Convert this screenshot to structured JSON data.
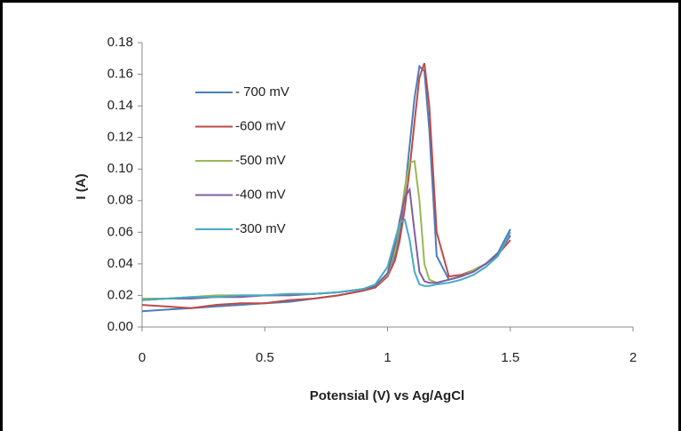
{
  "chart_data": {
    "type": "line",
    "x_label": "Potensial (V) vs Ag/AgCl",
    "y_label": "I (A)",
    "x": [
      0,
      0.1,
      0.2,
      0.3,
      0.4,
      0.5,
      0.6,
      0.7,
      0.8,
      0.9,
      0.95,
      1.0,
      1.03,
      1.05,
      1.07,
      1.09,
      1.11,
      1.13,
      1.15,
      1.17,
      1.2,
      1.25,
      1.3,
      1.35,
      1.4,
      1.45,
      1.5
    ],
    "series": [
      {
        "name": "- 700 mV",
        "color": "#4a7ebb",
        "values": [
          0.01,
          0.011,
          0.012,
          0.013,
          0.014,
          0.015,
          0.016,
          0.018,
          0.02,
          0.023,
          0.026,
          0.034,
          0.045,
          0.06,
          0.085,
          0.115,
          0.145,
          0.165,
          0.162,
          0.125,
          0.045,
          0.03,
          0.032,
          0.036,
          0.04,
          0.047,
          0.062
        ]
      },
      {
        "name": "-600 mV",
        "color": "#be4b48",
        "values": [
          0.014,
          0.013,
          0.012,
          0.014,
          0.015,
          0.015,
          0.017,
          0.018,
          0.02,
          0.023,
          0.025,
          0.032,
          0.042,
          0.055,
          0.075,
          0.1,
          0.13,
          0.158,
          0.167,
          0.14,
          0.06,
          0.032,
          0.033,
          0.036,
          0.04,
          0.046,
          0.055
        ]
      },
      {
        "name": "-500 mV",
        "color": "#98b954",
        "values": [
          0.018,
          0.018,
          0.019,
          0.02,
          0.02,
          0.02,
          0.021,
          0.021,
          0.022,
          0.024,
          0.026,
          0.033,
          0.048,
          0.065,
          0.088,
          0.104,
          0.105,
          0.08,
          0.04,
          0.03,
          0.028,
          0.03,
          0.032,
          0.036,
          0.04,
          0.046,
          0.058
        ]
      },
      {
        "name": "-400 mV",
        "color": "#7d60a0",
        "values": [
          0.017,
          0.018,
          0.018,
          0.019,
          0.019,
          0.02,
          0.02,
          0.021,
          0.022,
          0.024,
          0.026,
          0.034,
          0.052,
          0.068,
          0.082,
          0.087,
          0.06,
          0.035,
          0.029,
          0.028,
          0.028,
          0.03,
          0.032,
          0.035,
          0.04,
          0.046,
          0.058
        ]
      },
      {
        "name": "-300 mV",
        "color": "#46aac5",
        "values": [
          0.017,
          0.018,
          0.019,
          0.019,
          0.02,
          0.02,
          0.021,
          0.021,
          0.022,
          0.024,
          0.027,
          0.038,
          0.055,
          0.066,
          0.068,
          0.055,
          0.035,
          0.027,
          0.026,
          0.026,
          0.027,
          0.028,
          0.03,
          0.033,
          0.038,
          0.045,
          0.06
        ]
      }
    ],
    "xlim": [
      0,
      2
    ],
    "xticks": [
      0,
      0.5,
      1,
      1.5,
      2
    ],
    "ylim": [
      0,
      0.18
    ],
    "yticks": [
      {
        "value": 0,
        "label": "0.00"
      },
      {
        "value": 0.02,
        "label": "0.02"
      },
      {
        "value": 0.04,
        "label": "0.04"
      },
      {
        "value": 0.06,
        "label": "0.06"
      },
      {
        "value": 0.08,
        "label": "0.08"
      },
      {
        "value": 0.1,
        "label": "0.10"
      },
      {
        "value": 0.12,
        "label": "0.12"
      },
      {
        "value": 0.14,
        "label": "0.14"
      },
      {
        "value": 0.16,
        "label": "0.16"
      },
      {
        "value": 0.18,
        "label": "0.18"
      }
    ]
  }
}
